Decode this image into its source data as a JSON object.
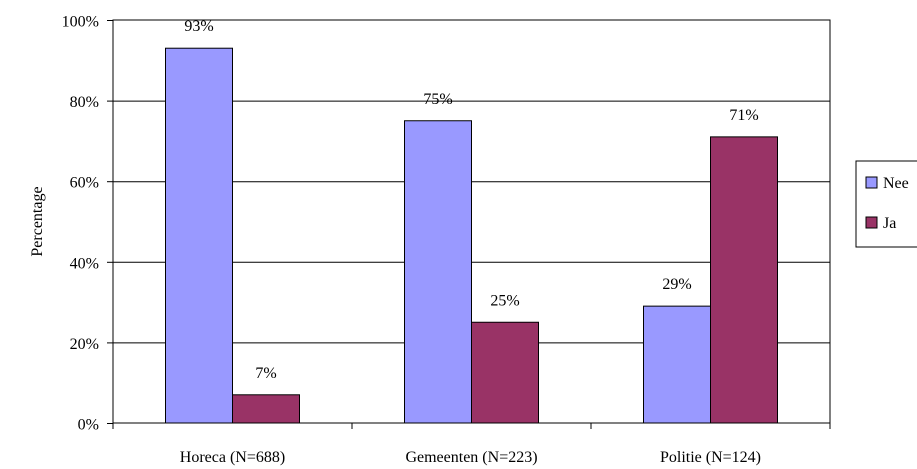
{
  "chart_data": {
    "type": "bar",
    "title": "",
    "xlabel": "",
    "ylabel": "Percentage",
    "ylim": [
      0,
      100
    ],
    "yticks": [
      0,
      20,
      40,
      60,
      80,
      100
    ],
    "ytick_labels": [
      "0%",
      "20%",
      "40%",
      "60%",
      "80%",
      "100%"
    ],
    "grid": true,
    "legend_position": "right",
    "categories": [
      "Horeca (N=688)",
      "Gemeenten (N=223)",
      "Politie (N=124)"
    ],
    "series": [
      {
        "name": "Nee",
        "color": "#9999FF",
        "values": [
          93,
          75,
          29
        ],
        "labels": [
          "93%",
          "75%",
          "29%"
        ]
      },
      {
        "name": "Ja",
        "color": "#993366",
        "values": [
          7,
          25,
          71
        ],
        "labels": [
          "7%",
          "25%",
          "71%"
        ]
      }
    ]
  }
}
